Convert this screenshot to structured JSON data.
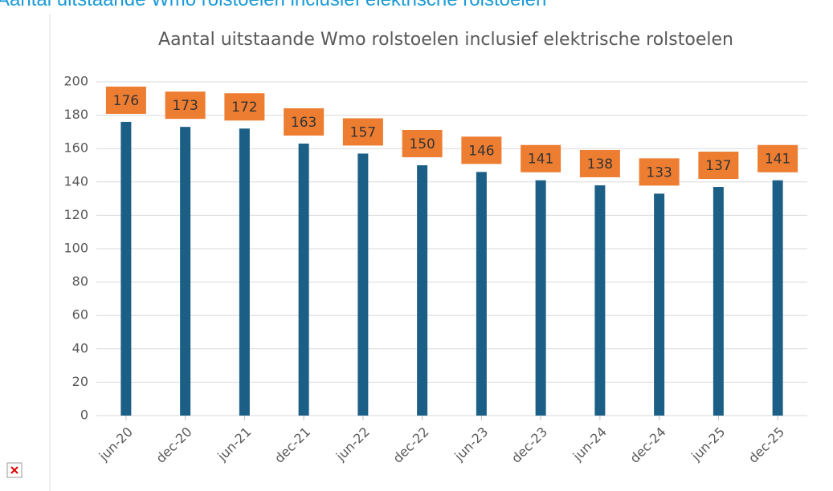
{
  "heading": "Aantal uitstaande Wmo rolstoelen inclusief elektrische rolstoelen",
  "chart_data": {
    "type": "bar",
    "title": "Aantal uitstaande Wmo rolstoelen inclusief elektrische rolstoelen",
    "categories": [
      "jun-20",
      "dec-20",
      "jun-21",
      "dec-21",
      "jun-22",
      "dec-22",
      "jun-23",
      "dec-23",
      "jun-24",
      "dec-24",
      "jun-25",
      "dec-25"
    ],
    "values": [
      176,
      173,
      172,
      163,
      157,
      150,
      146,
      141,
      138,
      133,
      137,
      141
    ],
    "color": "#1b5f86",
    "label_color": "#ed7d31",
    "ylim": [
      0,
      200
    ],
    "yticks": [
      0,
      20,
      40,
      60,
      80,
      100,
      120,
      140,
      160,
      180,
      200
    ],
    "grid": true
  }
}
